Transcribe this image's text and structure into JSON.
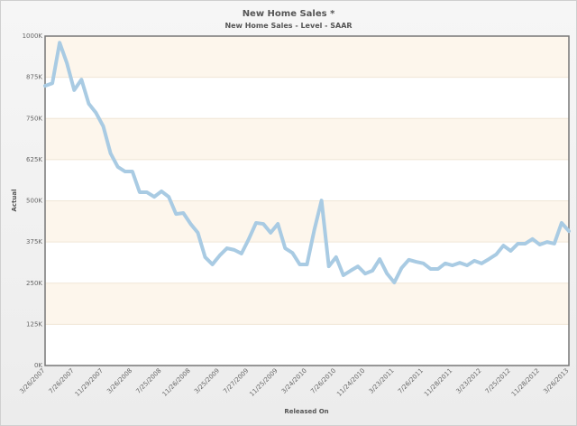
{
  "chart_data": {
    "type": "line",
    "title": "New Home Sales *",
    "subtitle": "New Home Sales - Level - SAAR",
    "xlabel": "Released On",
    "ylabel": "Actual",
    "ylim": [
      0,
      1000
    ],
    "y_ticks": [
      "0K",
      "125K",
      "250K",
      "375K",
      "500K",
      "625K",
      "750K",
      "875K",
      "1000K"
    ],
    "x_ticks": [
      "3/26/2007",
      "7/26/2007",
      "11/29/2007",
      "3/26/2008",
      "7/25/2008",
      "11/26/2008",
      "3/25/2009",
      "7/27/2009",
      "11/25/2009",
      "3/24/2010",
      "7/26/2010",
      "11/24/2010",
      "3/23/2011",
      "7/26/2011",
      "11/28/2011",
      "3/23/2012",
      "7/25/2012",
      "11/28/2012",
      "3/26/2013"
    ],
    "grid": true,
    "band_color": "#fdf6ec",
    "series": [
      {
        "name": "Actual",
        "color": "#a9cbe3",
        "values": [
          849,
          857,
          980,
          918,
          836,
          868,
          795,
          767,
          726,
          644,
          603,
          589,
          589,
          526,
          526,
          512,
          529,
          512,
          460,
          463,
          430,
          403,
          329,
          307,
          334,
          356,
          351,
          340,
          384,
          433,
          430,
          403,
          430,
          356,
          342,
          307,
          307,
          411,
          501,
          301,
          329,
          274,
          288,
          301,
          279,
          288,
          323,
          279,
          252,
          296,
          321,
          315,
          310,
          293,
          293,
          310,
          304,
          312,
          304,
          318,
          310,
          323,
          337,
          364,
          348,
          370,
          370,
          384,
          367,
          375,
          370,
          433,
          408
        ]
      }
    ]
  }
}
